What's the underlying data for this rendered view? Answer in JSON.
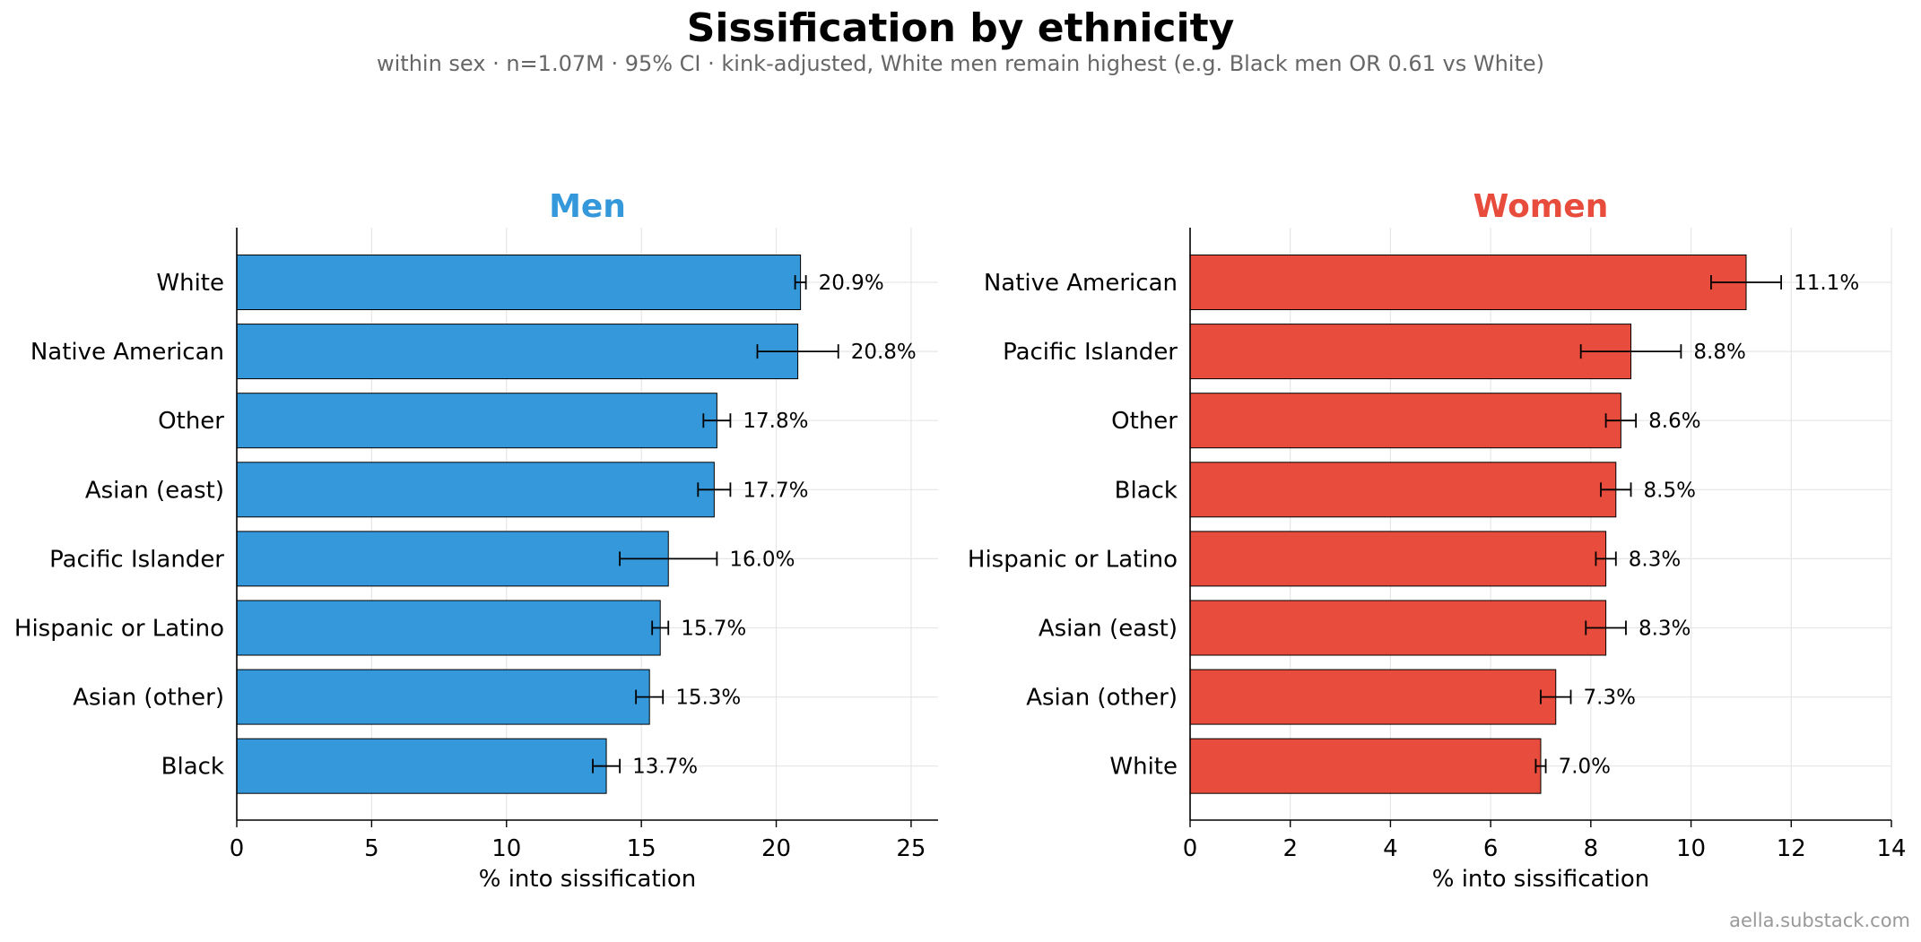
{
  "title": "Sissification by ethnicity",
  "subtitle": "within sex · n=1.07M · 95% CI · kink-adjusted, White men remain highest (e.g. Black men OR 0.61 vs White)",
  "credit": "aella.substack.com",
  "chart_data": [
    {
      "type": "bar",
      "orientation": "horizontal",
      "title": "Men",
      "title_color": "#3498db",
      "bar_color": "#3498db",
      "xlabel": "% into sissification",
      "xlim": [
        0,
        26
      ],
      "xticks": [
        0,
        5,
        10,
        15,
        20,
        25
      ],
      "grid": true,
      "categories": [
        "White",
        "Native American",
        "Other",
        "Asian (east)",
        "Pacific Islander",
        "Hispanic or Latino",
        "Asian (other)",
        "Black"
      ],
      "values": [
        20.9,
        20.8,
        17.8,
        17.7,
        16.0,
        15.7,
        15.3,
        13.7
      ],
      "value_labels": [
        "20.9%",
        "20.8%",
        "17.8%",
        "17.7%",
        "16.0%",
        "15.7%",
        "15.3%",
        "13.7%"
      ],
      "ci_low": [
        20.7,
        19.3,
        17.3,
        17.1,
        14.2,
        15.4,
        14.8,
        13.2
      ],
      "ci_high": [
        21.1,
        22.3,
        18.3,
        18.3,
        17.8,
        16.0,
        15.8,
        14.2
      ]
    },
    {
      "type": "bar",
      "orientation": "horizontal",
      "title": "Women",
      "title_color": "#e74c3c",
      "bar_color": "#e74c3c",
      "xlabel": "% into sissification",
      "xlim": [
        0,
        14
      ],
      "xticks": [
        0,
        2,
        4,
        6,
        8,
        10,
        12,
        14
      ],
      "grid": true,
      "categories": [
        "Native American",
        "Pacific Islander",
        "Other",
        "Black",
        "Hispanic or Latino",
        "Asian (east)",
        "Asian (other)",
        "White"
      ],
      "values": [
        11.1,
        8.8,
        8.6,
        8.5,
        8.3,
        8.3,
        7.3,
        7.0
      ],
      "value_labels": [
        "11.1%",
        "8.8%",
        "8.6%",
        "8.5%",
        "8.3%",
        "8.3%",
        "7.3%",
        "7.0%"
      ],
      "ci_low": [
        10.4,
        7.8,
        8.3,
        8.2,
        8.1,
        7.9,
        7.0,
        6.9
      ],
      "ci_high": [
        11.8,
        9.8,
        8.9,
        8.8,
        8.5,
        8.7,
        7.6,
        7.1
      ]
    }
  ]
}
